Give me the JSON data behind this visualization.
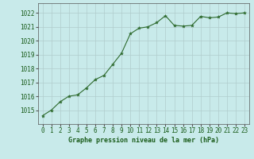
{
  "x": [
    0,
    1,
    2,
    3,
    4,
    5,
    6,
    7,
    8,
    9,
    10,
    11,
    12,
    13,
    14,
    15,
    16,
    17,
    18,
    19,
    20,
    21,
    22,
    23
  ],
  "y": [
    1014.6,
    1015.0,
    1015.6,
    1016.0,
    1016.1,
    1016.6,
    1017.2,
    1017.5,
    1018.3,
    1019.1,
    1020.5,
    1020.9,
    1021.0,
    1021.3,
    1021.8,
    1021.1,
    1021.05,
    1021.1,
    1021.75,
    1021.65,
    1021.7,
    1022.0,
    1021.95,
    1022.0
  ],
  "line_color": "#2d6a2d",
  "marker_color": "#2d6a2d",
  "bg_color": "#c8eaea",
  "grid_color": "#b0cccc",
  "xlabel": "Graphe pression niveau de la mer (hPa)",
  "xlabel_color": "#1a5c1a",
  "xlabel_fontsize": 6.0,
  "tick_label_color": "#1a5c1a",
  "tick_fontsize": 5.5,
  "ylim": [
    1014.0,
    1022.7
  ],
  "yticks": [
    1015,
    1016,
    1017,
    1018,
    1019,
    1020,
    1021,
    1022
  ],
  "xticks": [
    0,
    1,
    2,
    3,
    4,
    5,
    6,
    7,
    8,
    9,
    10,
    11,
    12,
    13,
    14,
    15,
    16,
    17,
    18,
    19,
    20,
    21,
    22,
    23
  ]
}
